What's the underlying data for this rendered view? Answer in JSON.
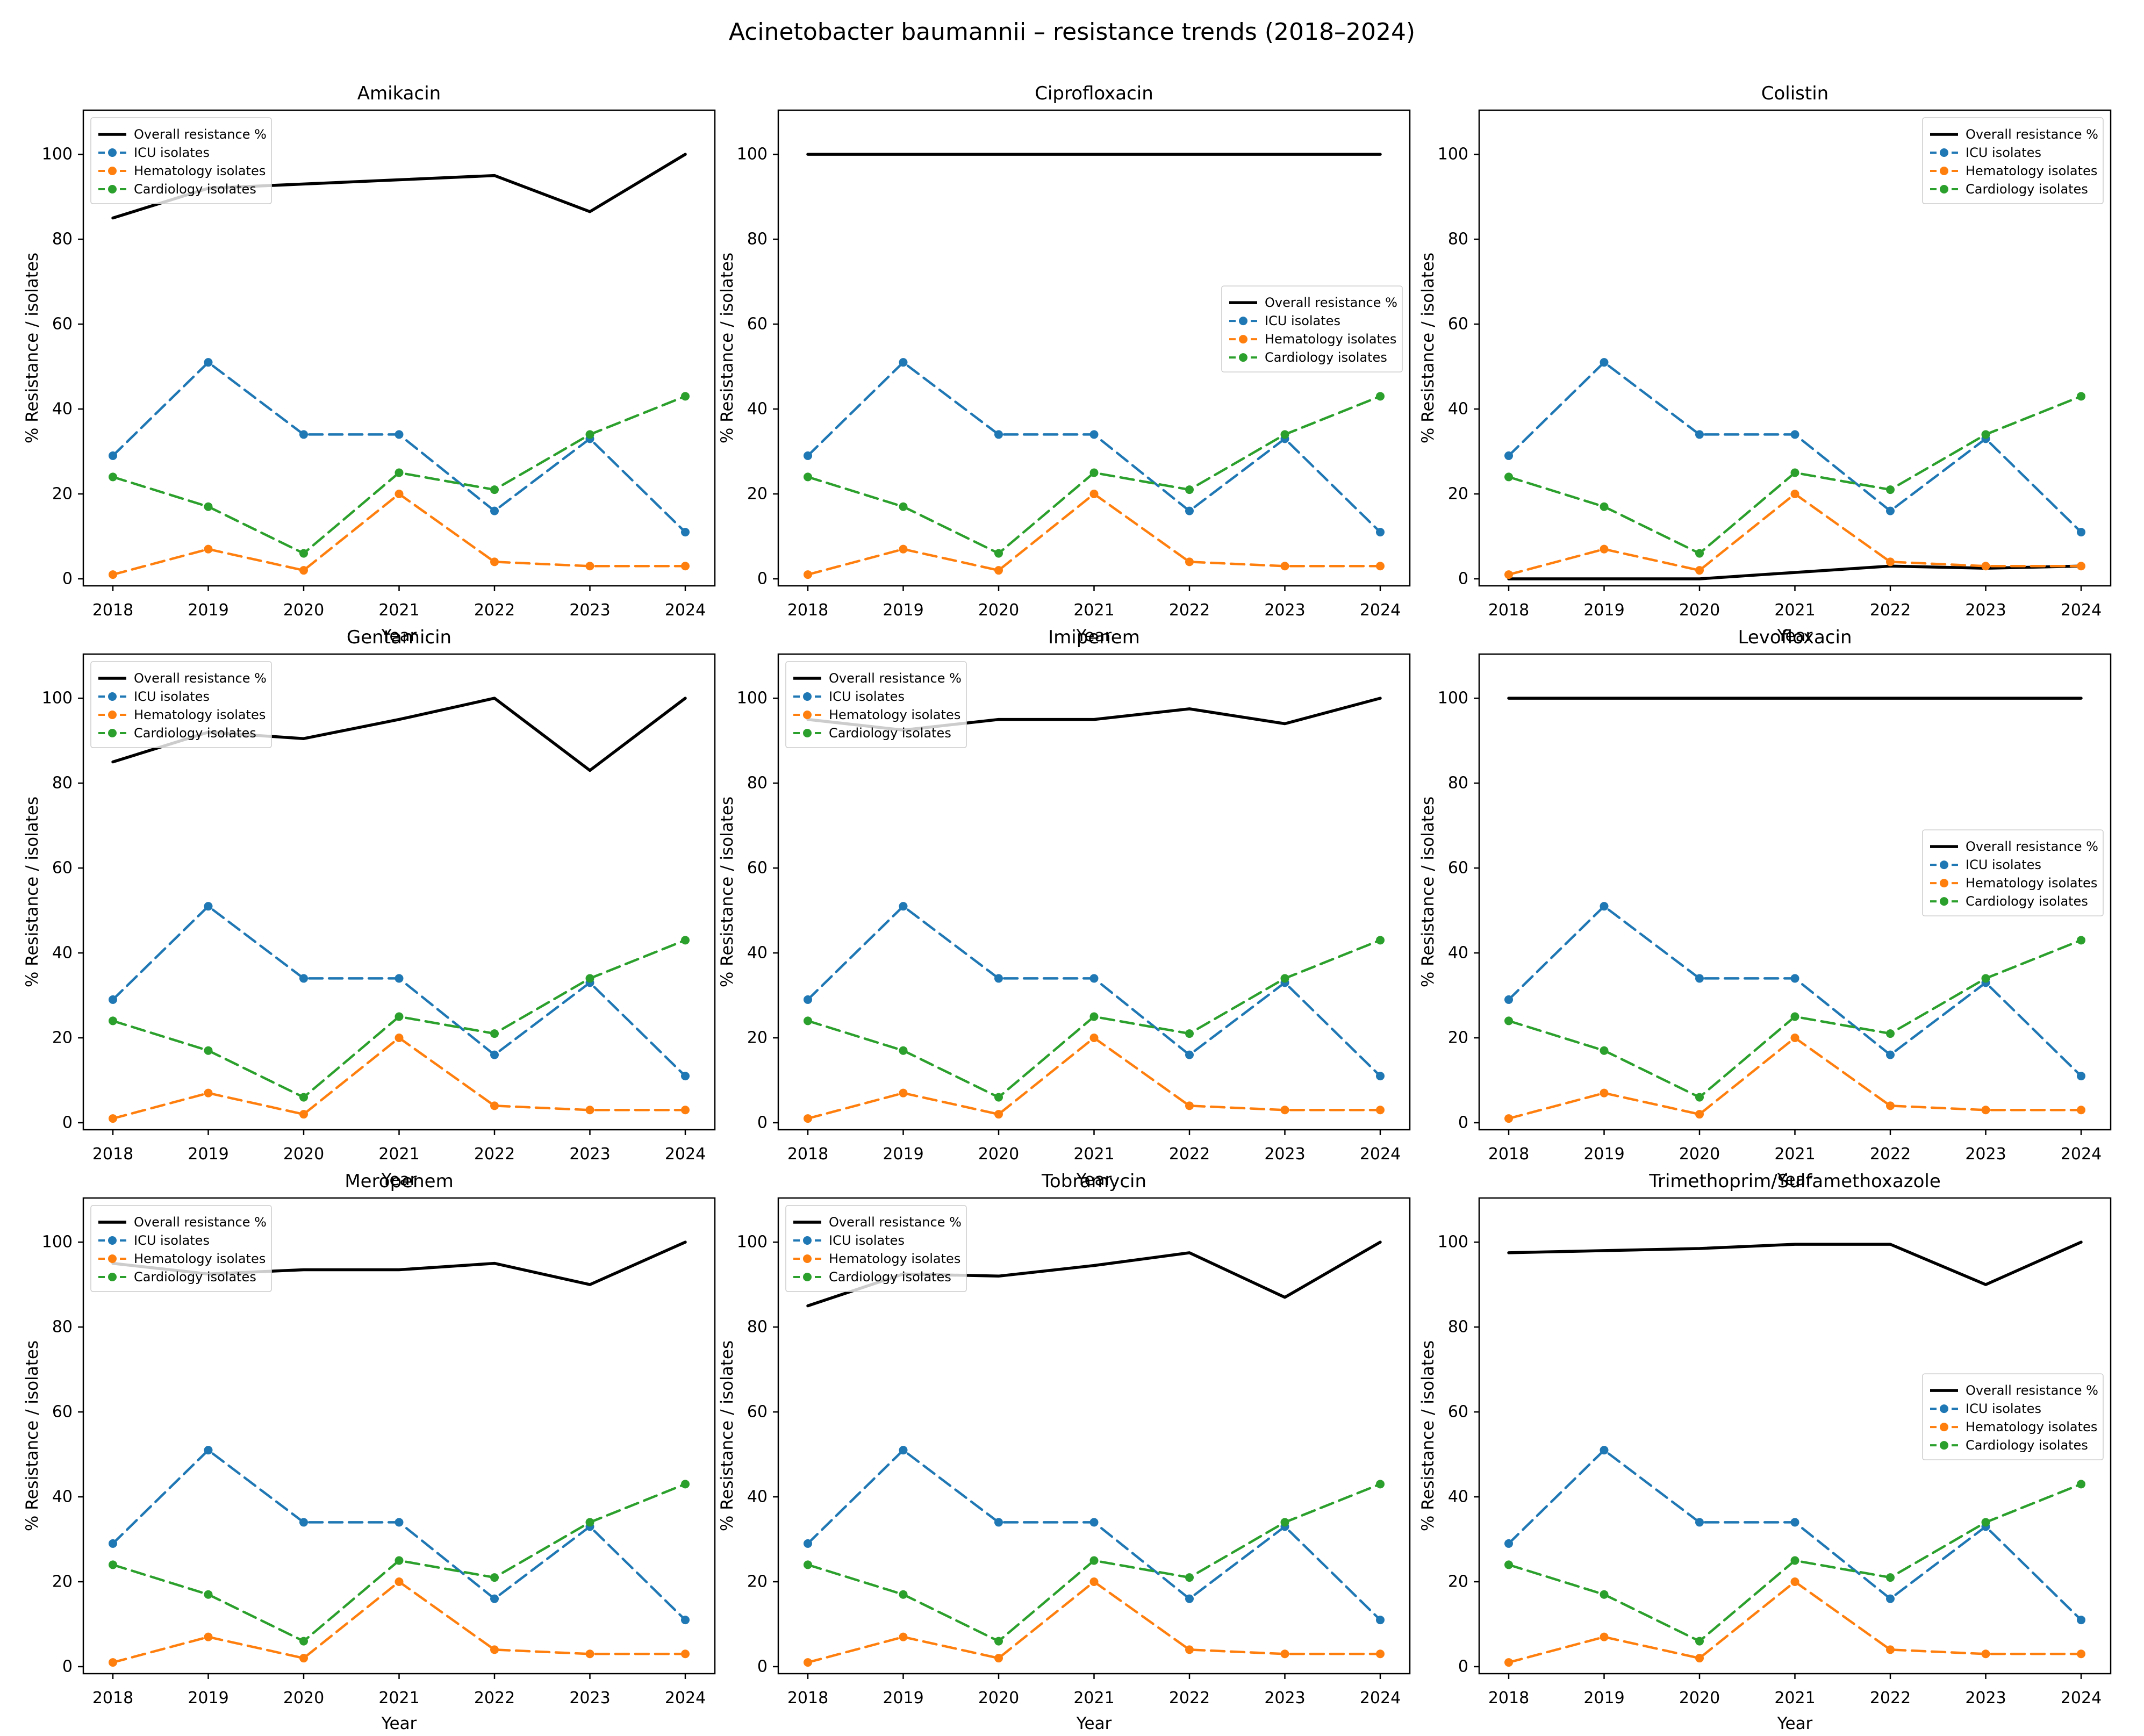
{
  "figure": {
    "title": "Acinetobacter baumannii – resistance trends (2018–2024)"
  },
  "axes": {
    "xlabel": "Year",
    "ylabel": "% Resistance / isolates",
    "xticks": [
      2018,
      2019,
      2020,
      2021,
      2022,
      2023,
      2024
    ],
    "yticks": [
      0,
      20,
      40,
      60,
      80,
      100
    ],
    "ylim": [
      -1.65,
      110.4
    ],
    "grid": false
  },
  "palette": {
    "overall": "#000000",
    "icu": "#1f77b4",
    "hematology": "#ff7f0e",
    "cardiology": "#2ca02c"
  },
  "legend_labels": [
    "Overall resistance %",
    "ICU isolates",
    "Hematology isolates",
    "Cardiology isolates"
  ],
  "chart_data": [
    {
      "type": "line",
      "title": "Amikacin",
      "legend_loc": "upper left",
      "x": [
        2018,
        2019,
        2020,
        2021,
        2022,
        2023,
        2024
      ],
      "series": [
        {
          "name": "Overall resistance %",
          "color": "#000000",
          "style": "solid",
          "marker": false,
          "values": [
            85,
            92,
            93,
            94,
            95,
            86.5,
            100
          ]
        },
        {
          "name": "ICU isolates",
          "color": "#1f77b4",
          "style": "dashed",
          "marker": true,
          "values": [
            29,
            51,
            34,
            34,
            16,
            33,
            11
          ]
        },
        {
          "name": "Hematology isolates",
          "color": "#ff7f0e",
          "style": "dashed",
          "marker": true,
          "values": [
            1,
            7,
            2,
            20,
            4,
            3,
            3
          ]
        },
        {
          "name": "Cardiology isolates",
          "color": "#2ca02c",
          "style": "dashed",
          "marker": true,
          "values": [
            24,
            17,
            6,
            25,
            21,
            34,
            43
          ]
        }
      ]
    },
    {
      "type": "line",
      "title": "Ciprofloxacin",
      "legend_loc": "center right",
      "x": [
        2018,
        2019,
        2020,
        2021,
        2022,
        2023,
        2024
      ],
      "series": [
        {
          "name": "Overall resistance %",
          "color": "#000000",
          "style": "solid",
          "marker": false,
          "values": [
            100,
            100,
            100,
            100,
            100,
            100,
            100
          ]
        },
        {
          "name": "ICU isolates",
          "color": "#1f77b4",
          "style": "dashed",
          "marker": true,
          "values": [
            29,
            51,
            34,
            34,
            16,
            33,
            11
          ]
        },
        {
          "name": "Hematology isolates",
          "color": "#ff7f0e",
          "style": "dashed",
          "marker": true,
          "values": [
            1,
            7,
            2,
            20,
            4,
            3,
            3
          ]
        },
        {
          "name": "Cardiology isolates",
          "color": "#2ca02c",
          "style": "dashed",
          "marker": true,
          "values": [
            24,
            17,
            6,
            25,
            21,
            34,
            43
          ]
        }
      ]
    },
    {
      "type": "line",
      "title": "Colistin",
      "legend_loc": "upper right",
      "x": [
        2018,
        2019,
        2020,
        2021,
        2022,
        2023,
        2024
      ],
      "series": [
        {
          "name": "Overall resistance %",
          "color": "#000000",
          "style": "solid",
          "marker": false,
          "values": [
            0,
            0,
            0,
            1.5,
            3,
            2.5,
            3
          ]
        },
        {
          "name": "ICU isolates",
          "color": "#1f77b4",
          "style": "dashed",
          "marker": true,
          "values": [
            29,
            51,
            34,
            34,
            16,
            33,
            11
          ]
        },
        {
          "name": "Hematology isolates",
          "color": "#ff7f0e",
          "style": "dashed",
          "marker": true,
          "values": [
            1,
            7,
            2,
            20,
            4,
            3,
            3
          ]
        },
        {
          "name": "Cardiology isolates",
          "color": "#2ca02c",
          "style": "dashed",
          "marker": true,
          "values": [
            24,
            17,
            6,
            25,
            21,
            34,
            43
          ]
        }
      ]
    },
    {
      "type": "line",
      "title": "Gentamicin",
      "legend_loc": "upper left",
      "x": [
        2018,
        2019,
        2020,
        2021,
        2022,
        2023,
        2024
      ],
      "series": [
        {
          "name": "Overall resistance %",
          "color": "#000000",
          "style": "solid",
          "marker": false,
          "values": [
            85,
            92,
            90.5,
            95,
            100,
            83,
            100
          ]
        },
        {
          "name": "ICU isolates",
          "color": "#1f77b4",
          "style": "dashed",
          "marker": true,
          "values": [
            29,
            51,
            34,
            34,
            16,
            33,
            11
          ]
        },
        {
          "name": "Hematology isolates",
          "color": "#ff7f0e",
          "style": "dashed",
          "marker": true,
          "values": [
            1,
            7,
            2,
            20,
            4,
            3,
            3
          ]
        },
        {
          "name": "Cardiology isolates",
          "color": "#2ca02c",
          "style": "dashed",
          "marker": true,
          "values": [
            24,
            17,
            6,
            25,
            21,
            34,
            43
          ]
        }
      ]
    },
    {
      "type": "line",
      "title": "Imipenem",
      "legend_loc": "upper left",
      "x": [
        2018,
        2019,
        2020,
        2021,
        2022,
        2023,
        2024
      ],
      "series": [
        {
          "name": "Overall resistance %",
          "color": "#000000",
          "style": "solid",
          "marker": false,
          "values": [
            95,
            92.5,
            95,
            95,
            97.5,
            94,
            100
          ]
        },
        {
          "name": "ICU isolates",
          "color": "#1f77b4",
          "style": "dashed",
          "marker": true,
          "values": [
            29,
            51,
            34,
            34,
            16,
            33,
            11
          ]
        },
        {
          "name": "Hematology isolates",
          "color": "#ff7f0e",
          "style": "dashed",
          "marker": true,
          "values": [
            1,
            7,
            2,
            20,
            4,
            3,
            3
          ]
        },
        {
          "name": "Cardiology isolates",
          "color": "#2ca02c",
          "style": "dashed",
          "marker": true,
          "values": [
            24,
            17,
            6,
            25,
            21,
            34,
            43
          ]
        }
      ]
    },
    {
      "type": "line",
      "title": "Levofloxacin",
      "legend_loc": "center right",
      "x": [
        2018,
        2019,
        2020,
        2021,
        2022,
        2023,
        2024
      ],
      "series": [
        {
          "name": "Overall resistance %",
          "color": "#000000",
          "style": "solid",
          "marker": false,
          "values": [
            100,
            100,
            100,
            100,
            100,
            100,
            100
          ]
        },
        {
          "name": "ICU isolates",
          "color": "#1f77b4",
          "style": "dashed",
          "marker": true,
          "values": [
            29,
            51,
            34,
            34,
            16,
            33,
            11
          ]
        },
        {
          "name": "Hematology isolates",
          "color": "#ff7f0e",
          "style": "dashed",
          "marker": true,
          "values": [
            1,
            7,
            2,
            20,
            4,
            3,
            3
          ]
        },
        {
          "name": "Cardiology isolates",
          "color": "#2ca02c",
          "style": "dashed",
          "marker": true,
          "values": [
            24,
            17,
            6,
            25,
            21,
            34,
            43
          ]
        }
      ]
    },
    {
      "type": "line",
      "title": "Meropenem",
      "legend_loc": "upper left",
      "x": [
        2018,
        2019,
        2020,
        2021,
        2022,
        2023,
        2024
      ],
      "series": [
        {
          "name": "Overall resistance %",
          "color": "#000000",
          "style": "solid",
          "marker": false,
          "values": [
            95,
            92.5,
            93.5,
            93.5,
            95,
            90,
            100
          ]
        },
        {
          "name": "ICU isolates",
          "color": "#1f77b4",
          "style": "dashed",
          "marker": true,
          "values": [
            29,
            51,
            34,
            34,
            16,
            33,
            11
          ]
        },
        {
          "name": "Hematology isolates",
          "color": "#ff7f0e",
          "style": "dashed",
          "marker": true,
          "values": [
            1,
            7,
            2,
            20,
            4,
            3,
            3
          ]
        },
        {
          "name": "Cardiology isolates",
          "color": "#2ca02c",
          "style": "dashed",
          "marker": true,
          "values": [
            24,
            17,
            6,
            25,
            21,
            34,
            43
          ]
        }
      ]
    },
    {
      "type": "line",
      "title": "Tobramycin",
      "legend_loc": "upper left",
      "x": [
        2018,
        2019,
        2020,
        2021,
        2022,
        2023,
        2024
      ],
      "series": [
        {
          "name": "Overall resistance %",
          "color": "#000000",
          "style": "solid",
          "marker": false,
          "values": [
            85,
            92.5,
            92,
            94.5,
            97.5,
            87,
            100
          ]
        },
        {
          "name": "ICU isolates",
          "color": "#1f77b4",
          "style": "dashed",
          "marker": true,
          "values": [
            29,
            51,
            34,
            34,
            16,
            33,
            11
          ]
        },
        {
          "name": "Hematology isolates",
          "color": "#ff7f0e",
          "style": "dashed",
          "marker": true,
          "values": [
            1,
            7,
            2,
            20,
            4,
            3,
            3
          ]
        },
        {
          "name": "Cardiology isolates",
          "color": "#2ca02c",
          "style": "dashed",
          "marker": true,
          "values": [
            24,
            17,
            6,
            25,
            21,
            34,
            43
          ]
        }
      ]
    },
    {
      "type": "line",
      "title": "Trimethoprim/Sulfamethoxazole",
      "legend_loc": "center right",
      "x": [
        2018,
        2019,
        2020,
        2021,
        2022,
        2023,
        2024
      ],
      "series": [
        {
          "name": "Overall resistance %",
          "color": "#000000",
          "style": "solid",
          "marker": false,
          "values": [
            97.5,
            98,
            98.5,
            99.5,
            99.5,
            90,
            100
          ]
        },
        {
          "name": "ICU isolates",
          "color": "#1f77b4",
          "style": "dashed",
          "marker": true,
          "values": [
            29,
            51,
            34,
            34,
            16,
            33,
            11
          ]
        },
        {
          "name": "Hematology isolates",
          "color": "#ff7f0e",
          "style": "dashed",
          "marker": true,
          "values": [
            1,
            7,
            2,
            20,
            4,
            3,
            3
          ]
        },
        {
          "name": "Cardiology isolates",
          "color": "#2ca02c",
          "style": "dashed",
          "marker": true,
          "values": [
            24,
            17,
            6,
            25,
            21,
            34,
            43
          ]
        }
      ]
    }
  ]
}
